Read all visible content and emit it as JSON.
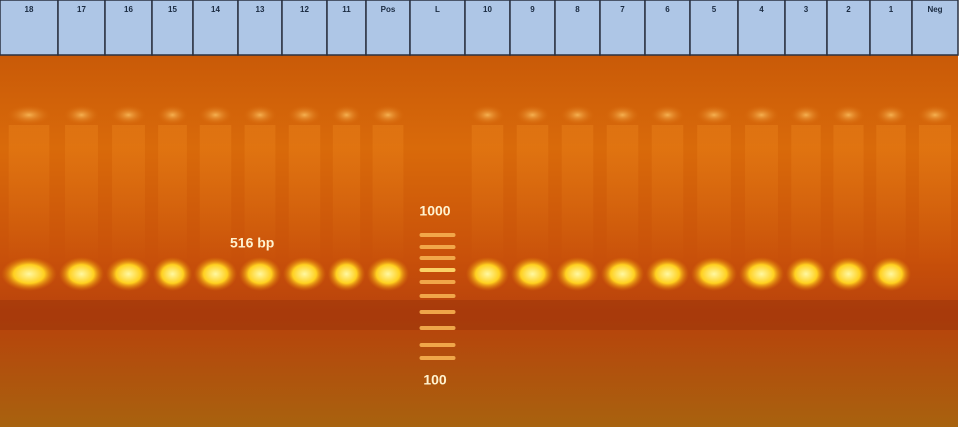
{
  "header": {
    "lanes": [
      "18",
      "17",
      "16",
      "15",
      "14",
      "13",
      "12",
      "11",
      "Pos",
      "L",
      "10",
      "9",
      "8",
      "7",
      "6",
      "5",
      "4",
      "3",
      "2",
      "1",
      "Neg"
    ]
  },
  "annotations": {
    "band_size": "516 bp",
    "ladder_top": "1000",
    "ladder_bottom": "100"
  }
}
